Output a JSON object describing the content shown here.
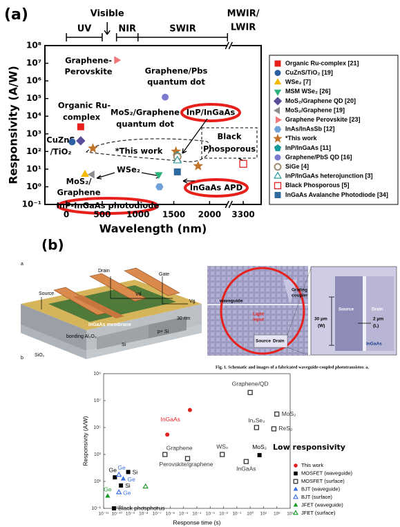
{
  "panel_labels": [
    "(a)",
    "(b)"
  ],
  "chart_data": [
    {
      "type": "scatter",
      "x_label": "Wavelength (nm)",
      "y_label": "Responsivity (A/W)",
      "xlim": [
        -300,
        3550
      ],
      "x_break": [
        2250,
        3080
      ],
      "xticks": [
        0,
        500,
        1000,
        1500,
        2000,
        3300
      ],
      "ylim": [
        0.1,
        100000000
      ],
      "log_y": true,
      "yticks": [
        {
          "value": 0.1,
          "label": "10⁻¹"
        },
        {
          "value": 1,
          "label": "10⁰"
        },
        {
          "value": 10,
          "label": "10¹"
        },
        {
          "value": 100,
          "label": "10²"
        },
        {
          "value": 1000,
          "label": "10³"
        },
        {
          "value": 10000,
          "label": "10⁴"
        },
        {
          "value": 100000,
          "label": "10⁵"
        },
        {
          "value": 1000000,
          "label": "10⁶"
        },
        {
          "value": 10000000,
          "label": "10⁷"
        },
        {
          "value": 100000000,
          "label": "10⁸"
        }
      ],
      "bands": [
        {
          "label": [
            "UV"
          ],
          "range": [
            0,
            500
          ]
        },
        {
          "label": [
            "Visible"
          ],
          "at": 570,
          "arrow": true
        },
        {
          "label": [
            "NIR"
          ],
          "range": [
            700,
            1000
          ]
        },
        {
          "label": [
            "SWIR"
          ],
          "range": [
            1000,
            2250
          ]
        },
        {
          "label": [
            "MWIR/",
            "LWIR"
          ],
          "at": 3300
        }
      ],
      "annotations": [
        {
          "lines": [
            "Graphene-",
            "Perovskite"
          ]
        },
        {
          "lines": [
            "Graphene/Pbs",
            "quantum dot"
          ]
        },
        {
          "lines": [
            "Organic Ru-",
            "complex"
          ]
        },
        {
          "lines": [
            "CuZnS",
            "/TiO₂"
          ]
        },
        {
          "lines": [
            "MoS₂/Graphene",
            "quantum dot"
          ]
        },
        {
          "lines": [
            "*This work"
          ]
        },
        {
          "lines": [
            "InP/InGaAs"
          ]
        },
        {
          "lines": [
            "Black",
            "Phosporous"
          ]
        },
        {
          "lines": [
            "WSe₂"
          ]
        },
        {
          "lines": [
            "MoS₂/",
            "Graphene"
          ]
        },
        {
          "lines": [
            "InGaAs APD"
          ]
        },
        {
          "lines": [
            "InP-InGaAs photodiode"
          ]
        }
      ],
      "legend": "right",
      "series": [
        {
          "name": "Organic Ru-complex [21]",
          "color": "#e8201c",
          "marker": "square",
          "x": [
            200
          ],
          "values": [
            2500
          ]
        },
        {
          "name": "CuZnS/TiO₂ [19]",
          "color": "#2e5fa3",
          "marker": "circle",
          "x": [
            80
          ],
          "values": [
            350
          ]
        },
        {
          "name": "WSe₂ [7]",
          "color": "#f5b800",
          "marker": "triangle-up",
          "x": [
            260
          ],
          "values": [
            5
          ]
        },
        {
          "name": "MSM WSe₂ [26]",
          "color": "#2db37a",
          "marker": "triangle-down",
          "x": [
            1290
          ],
          "values": [
            5
          ]
        },
        {
          "name": "MoS₂/Graphene QD [20]",
          "color": "#5a4f9a",
          "marker": "diamond",
          "x": [
            200
          ],
          "values": [
            400
          ]
        },
        {
          "name": "MoS₂/Graphene [19]",
          "color": "#8c8c8c",
          "marker": "triangle-left",
          "x": [
            360
          ],
          "values": [
            5
          ]
        },
        {
          "name": "Graphene Perovskite [23]",
          "color": "#f0787a",
          "marker": "triangle-right",
          "x": [
            700
          ],
          "values": [
            15000000
          ]
        },
        {
          "name": "InAs/InAsSb [12]",
          "color": "#6fa0d8",
          "marker": "hexagon",
          "x": [
            1300
          ],
          "values": [
            1
          ]
        },
        {
          "name": "*This work",
          "color": "#c0732a",
          "marker": "star",
          "x": [
            370,
            1530,
            1840
          ],
          "values": [
            150,
            100,
            15
          ]
        },
        {
          "name": "InP/InGaAs [11]",
          "color": "#1a9a9a",
          "marker": "pentagon",
          "x": [
            1550
          ],
          "values": [
            60
          ]
        },
        {
          "name": "Graphene/PbS QD [16]",
          "color": "#7b7bd0",
          "marker": "circle",
          "x": [
            1380
          ],
          "values": [
            120000
          ]
        },
        {
          "name": "SiGe [4]",
          "color": "#a08a70",
          "marker": "ring",
          "x": [
            1550
          ],
          "values": [
            50
          ]
        },
        {
          "name": "InP/InGaAs heterojunction [3]",
          "color": "#2a9a9a",
          "marker": "triangle-open",
          "x": [
            1550
          ],
          "values": [
            30
          ]
        },
        {
          "name": "Black Phosporous [5]",
          "color": "#e02020",
          "marker": "square-open",
          "x": [
            3300
          ],
          "values": [
            20
          ]
        },
        {
          "name": "InGaAs Avalanche Photodiode [34]",
          "color": "#2e6aa0",
          "marker": "square",
          "x": [
            1550
          ],
          "values": [
            7
          ]
        }
      ]
    },
    {
      "type": "scatter",
      "x_label": "Response time (s)",
      "y_label": "Responsivity (A/W)",
      "log_x": true,
      "log_y": true,
      "xlim": [
        1e-11,
        1000
      ],
      "ylim": [
        0.1,
        1000000000
      ],
      "xticks": [
        {
          "value": 1e-11,
          "label": "10⁻¹¹"
        },
        {
          "value": 1e-10,
          "label": "10⁻¹⁰"
        },
        {
          "value": 1e-09,
          "label": "10⁻⁹"
        },
        {
          "value": 1e-08,
          "label": "10⁻⁸"
        },
        {
          "value": 1e-07,
          "label": "10⁻⁷"
        },
        {
          "value": 1e-06,
          "label": "10⁻⁶"
        },
        {
          "value": 1e-05,
          "label": "10⁻⁵"
        },
        {
          "value": 0.0001,
          "label": "10⁻⁴"
        },
        {
          "value": 0.001,
          "label": "10⁻³"
        },
        {
          "value": 0.01,
          "label": "10⁻²"
        },
        {
          "value": 0.1,
          "label": "10⁻¹"
        },
        {
          "value": 1,
          "label": "10⁰"
        },
        {
          "value": 10,
          "label": "10¹"
        },
        {
          "value": 100,
          "label": "10²"
        },
        {
          "value": 1000,
          "label": "10³"
        }
      ],
      "yticks": [
        {
          "value": 0.1,
          "label": "10⁻¹"
        },
        {
          "value": 10,
          "label": "10¹"
        },
        {
          "value": 1000,
          "label": "10³"
        },
        {
          "value": 100000,
          "label": "10⁵"
        },
        {
          "value": 10000000,
          "label": "10⁷"
        },
        {
          "value": 1000000000,
          "label": "10⁹"
        }
      ],
      "annotations": [
        "Low responsivity"
      ],
      "legend": "right",
      "series": [
        {
          "name": "This work",
          "color": "#e32020",
          "marker": "circle",
          "x": [
            3e-05,
            6e-07
          ],
          "values": [
            2000000,
            30000
          ],
          "point_labels": [
            "InGaAs",
            null
          ]
        },
        {
          "name": "MOSFET (waveguide)",
          "color": "#000000",
          "marker": "square",
          "x": [
            7e-11,
            7e-10,
            2e-10,
            6e-11,
            5
          ],
          "values": [
            20,
            50,
            5,
            0.1,
            900
          ],
          "point_labels": [
            "Ge",
            "Si",
            "Si",
            "Black phosphorus",
            "MoS₂"
          ]
        },
        {
          "name": "MOSFET (surface)",
          "color": "#333333",
          "marker": "square-open",
          "x": [
            1,
            100,
            3,
            60,
            4e-07,
            2e-05,
            0.008,
            0.5
          ],
          "values": [
            40000000,
            1000000,
            100000,
            80000,
            1000,
            500,
            1000,
            300
          ],
          "point_labels": [
            "Graphene/QD",
            "MoS₂",
            "In₂Se₃",
            "ReS₂",
            "Graphene",
            "Perovskite/graphene",
            "WS₂",
            "InGaAs"
          ]
        },
        {
          "name": "BJT (waveguide)",
          "color": "#3a6fe0",
          "marker": "triangle-up",
          "x": [
            3e-10
          ],
          "values": [
            15
          ],
          "point_labels": [
            "Ge"
          ]
        },
        {
          "name": "BJT (surface)",
          "color": "#3a6fe0",
          "marker": "triangle-open",
          "x": [
            1.4e-10,
            1.4e-10
          ],
          "values": [
            30,
            1.5
          ],
          "point_labels": [
            "Ge",
            "Ge"
          ]
        },
        {
          "name": "JFET (waveguide)",
          "color": "#1a9a2a",
          "marker": "triangle-up",
          "x": [
            2e-11
          ],
          "values": [
            0.8
          ],
          "point_labels": [
            "Ge"
          ]
        },
        {
          "name": "JFET (surface)",
          "color": "#1a9a2a",
          "marker": "triangle-open",
          "x": [
            1.4e-08
          ],
          "values": [
            4
          ],
          "point_labels": [
            null
          ]
        }
      ]
    }
  ],
  "figure_b": {
    "schematic": [
      "a",
      "Source",
      "Drain",
      "Gate",
      "Vd",
      "Vg",
      "InGaAs membrane",
      "30 nm",
      "bonding Al₂O₃",
      "Si",
      "p+ Si",
      "SiO₂",
      "b"
    ],
    "micrograph": [
      "Grating",
      "coupler",
      "waveguide",
      "Light",
      "input",
      "Source",
      "Drain",
      "30 μm",
      "(W)",
      "Source",
      "Drain",
      "2 μm",
      "(L)",
      "InGaAs"
    ],
    "caption": "Fig. 1. Schematic and images of a fabricated waveguide-coupled phototransistor. a,"
  }
}
